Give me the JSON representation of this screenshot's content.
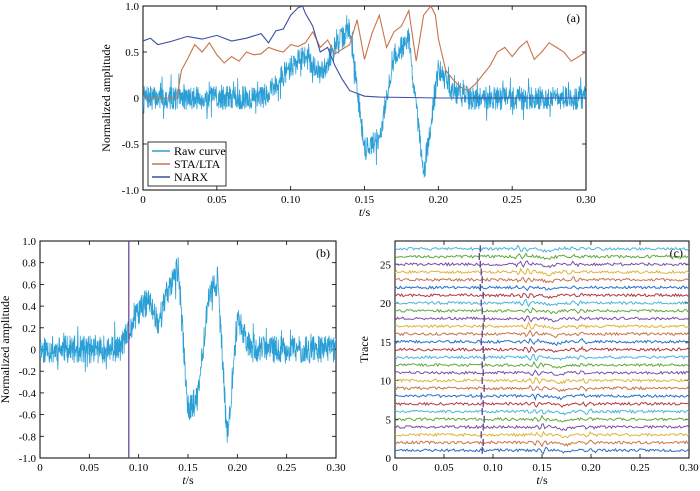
{
  "chart_data": [
    {
      "panel": "(a)",
      "type": "line",
      "xlabel": "t/s",
      "ylabel": "Normalized amplitude",
      "xlim": [
        0,
        0.3
      ],
      "ylim": [
        -1.0,
        1.0
      ],
      "xticks": [
        "0",
        "0.05",
        "0.10",
        "0.15",
        "0.20",
        "0.25",
        "0.30"
      ],
      "yticks": [
        "-1.0",
        "-0.5",
        "0",
        "0.5",
        "1.0"
      ],
      "legend_position": "bottom-left",
      "series": [
        {
          "name": "Raw curve",
          "color": "#2a9fd6",
          "noise_amplitude": 0.13,
          "envelope": {
            "x": [
              0,
              0.08,
              0.09,
              0.1,
              0.11,
              0.12,
              0.13,
              0.14,
              0.15,
              0.16,
              0.17,
              0.18,
              0.19,
              0.2,
              0.21,
              0.22,
              0.3
            ],
            "y": [
              0,
              0,
              0.15,
              0.35,
              0.45,
              0.25,
              0.55,
              0.75,
              -0.55,
              -0.45,
              0.45,
              0.65,
              -0.85,
              0.3,
              0.08,
              0,
              0
            ]
          }
        },
        {
          "name": "STA/LTA",
          "color": "#c8734a",
          "x": [
            0,
            0.012,
            0.015,
            0.023,
            0.026,
            0.03,
            0.035,
            0.04,
            0.045,
            0.05,
            0.055,
            0.06,
            0.065,
            0.07,
            0.075,
            0.08,
            0.085,
            0.09,
            0.095,
            0.1,
            0.105,
            0.11,
            0.115,
            0.12,
            0.125,
            0.13,
            0.135,
            0.14,
            0.145,
            0.15,
            0.155,
            0.16,
            0.165,
            0.17,
            0.175,
            0.18,
            0.185,
            0.19,
            0.195,
            0.198,
            0.2,
            0.205,
            0.21,
            0.215,
            0.22,
            0.225,
            0.23,
            0.235,
            0.24,
            0.245,
            0.25,
            0.255,
            0.26,
            0.265,
            0.27,
            0.275,
            0.28,
            0.285,
            0.29,
            0.295,
            0.3
          ],
          "y": [
            0,
            0,
            0,
            0,
            0.3,
            0.42,
            0.58,
            0.5,
            0.6,
            0.47,
            0.38,
            0.45,
            0.4,
            0.5,
            0.47,
            0.48,
            0.55,
            0.52,
            0.5,
            0.58,
            0.56,
            0.6,
            0.72,
            0.55,
            0.63,
            0.48,
            0.53,
            0.58,
            0.85,
            0.42,
            0.7,
            0.9,
            0.55,
            0.72,
            0.78,
            0.95,
            0.4,
            0.9,
            1.0,
            0.9,
            0.65,
            0.3,
            0.2,
            0.12,
            0.08,
            0.15,
            0.25,
            0.35,
            0.5,
            0.55,
            0.45,
            0.55,
            0.62,
            0.42,
            0.5,
            0.6,
            0.55,
            0.5,
            0.4,
            0.45,
            0.5
          ]
        },
        {
          "name": "NARX",
          "color": "#3b4ea2",
          "x": [
            0,
            0.005,
            0.01,
            0.02,
            0.03,
            0.04,
            0.05,
            0.06,
            0.07,
            0.08,
            0.085,
            0.09,
            0.095,
            0.1,
            0.105,
            0.108,
            0.11,
            0.115,
            0.12,
            0.125,
            0.13,
            0.135,
            0.14,
            0.15,
            0.16,
            0.18,
            0.2,
            0.25,
            0.3
          ],
          "y": [
            0.62,
            0.65,
            0.58,
            0.62,
            0.67,
            0.64,
            0.68,
            0.62,
            0.65,
            0.7,
            0.6,
            0.73,
            0.75,
            0.9,
            0.98,
            1.0,
            0.92,
            0.78,
            0.5,
            0.55,
            0.35,
            0.2,
            0.08,
            0.02,
            0.01,
            0.005,
            0,
            0,
            0
          ]
        }
      ]
    },
    {
      "panel": "(b)",
      "type": "line",
      "xlabel": "t/s",
      "ylabel": "Normalized amplitude",
      "xlim": [
        0,
        0.3
      ],
      "ylim": [
        -1.0,
        1.0
      ],
      "xticks": [
        "0",
        "0.05",
        "0.10",
        "0.15",
        "0.20",
        "0.25",
        "0.30"
      ],
      "yticks": [
        "-1.0",
        "-0.8",
        "-0.6",
        "-0.4",
        "-0.2",
        "0",
        "0.2",
        "0.4",
        "0.6",
        "0.8",
        "1.0"
      ],
      "pick_time": 0.09,
      "pick_color": "#5b3f8a",
      "series": [
        {
          "color": "#2a9fd6",
          "noise_amplitude": 0.13,
          "envelope": {
            "x": [
              0,
              0.08,
              0.09,
              0.1,
              0.11,
              0.12,
              0.13,
              0.14,
              0.15,
              0.16,
              0.17,
              0.18,
              0.19,
              0.2,
              0.21,
              0.22,
              0.3
            ],
            "y": [
              0,
              0,
              0.15,
              0.35,
              0.45,
              0.25,
              0.55,
              0.75,
              -0.55,
              -0.45,
              0.45,
              0.65,
              -0.85,
              0.3,
              0.08,
              0,
              0
            ]
          }
        }
      ]
    },
    {
      "panel": "(c)",
      "type": "line",
      "xlabel": "t/s",
      "ylabel": "Trace",
      "xlim": [
        0,
        0.3
      ],
      "ylim": [
        0,
        28
      ],
      "xticks": [
        "0",
        "0.05",
        "0.10",
        "0.15",
        "0.20",
        "0.25",
        "0.30"
      ],
      "yticks": [
        "0",
        "5",
        "10",
        "15",
        "20",
        "25"
      ],
      "trace_count": 27,
      "trace_colors": [
        "#2a6fc9",
        "#c8734a",
        "#e0b43a",
        "#7b4fa0",
        "#62a83a",
        "#4bb5d9",
        "#b03a46"
      ],
      "pick_times": [
        0.089,
        0.09,
        0.088,
        0.09,
        0.091,
        0.089,
        0.09,
        0.088,
        0.091,
        0.089,
        0.09,
        0.089,
        0.091,
        0.09,
        0.088,
        0.089,
        0.09,
        0.091,
        0.089,
        0.088,
        0.09,
        0.087,
        0.089,
        0.088,
        0.087,
        0.086,
        0.087
      ],
      "pick_color": "#5b3f8a"
    }
  ]
}
